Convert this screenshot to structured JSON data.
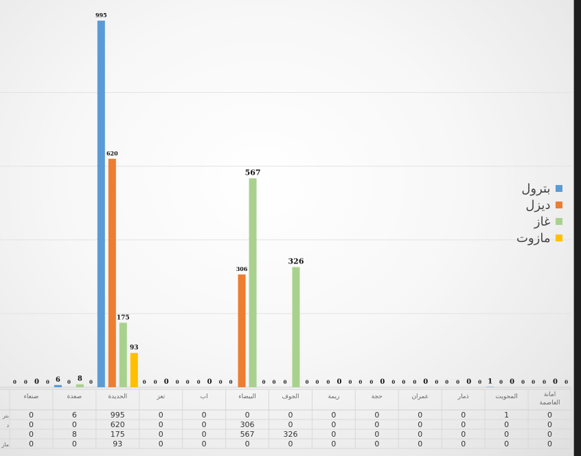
{
  "chart_data": {
    "type": "bar",
    "categories": [
      "صنعاء",
      "صعدة",
      "الحديدة",
      "تعز",
      "اب",
      "البيضاء",
      "الجوف",
      "ريمة",
      "حجة",
      "عمران",
      "ذمار",
      "المحويت",
      "امانة العاصمة"
    ],
    "category_lines": [
      [
        "صنعاء"
      ],
      [
        "صعدة"
      ],
      [
        "الحديدة"
      ],
      [
        "تعز"
      ],
      [
        "اب"
      ],
      [
        "البيضاء"
      ],
      [
        "الجوف"
      ],
      [
        "ريمة"
      ],
      [
        "حجة"
      ],
      [
        "عمران"
      ],
      [
        "ذمار"
      ],
      [
        "المحويت"
      ],
      [
        "امانة",
        "العاصمة"
      ]
    ],
    "series": [
      {
        "name": "بترول",
        "color": "#5b9bd5",
        "values": [
          0,
          6,
          995,
          0,
          0,
          0,
          0,
          0,
          0,
          0,
          0,
          1,
          0
        ]
      },
      {
        "name": "ديزل",
        "color": "#ed7d31",
        "values": [
          0,
          0,
          620,
          0,
          0,
          306,
          0,
          0,
          0,
          0,
          0,
          0,
          0
        ]
      },
      {
        "name": "غاز",
        "color": "#a9d18e",
        "values": [
          0,
          8,
          175,
          0,
          0,
          567,
          326,
          0,
          0,
          0,
          0,
          0,
          0
        ]
      },
      {
        "name": "مازوت",
        "color": "#ffc000",
        "values": [
          0,
          0,
          93,
          0,
          0,
          0,
          0,
          0,
          0,
          0,
          0,
          0,
          0
        ]
      }
    ],
    "row_labels_visible": [
      "بتر",
      "د",
      "",
      "ماز"
    ],
    "ylim": [
      0,
      1000
    ],
    "grid": true,
    "legend_position": "right"
  }
}
